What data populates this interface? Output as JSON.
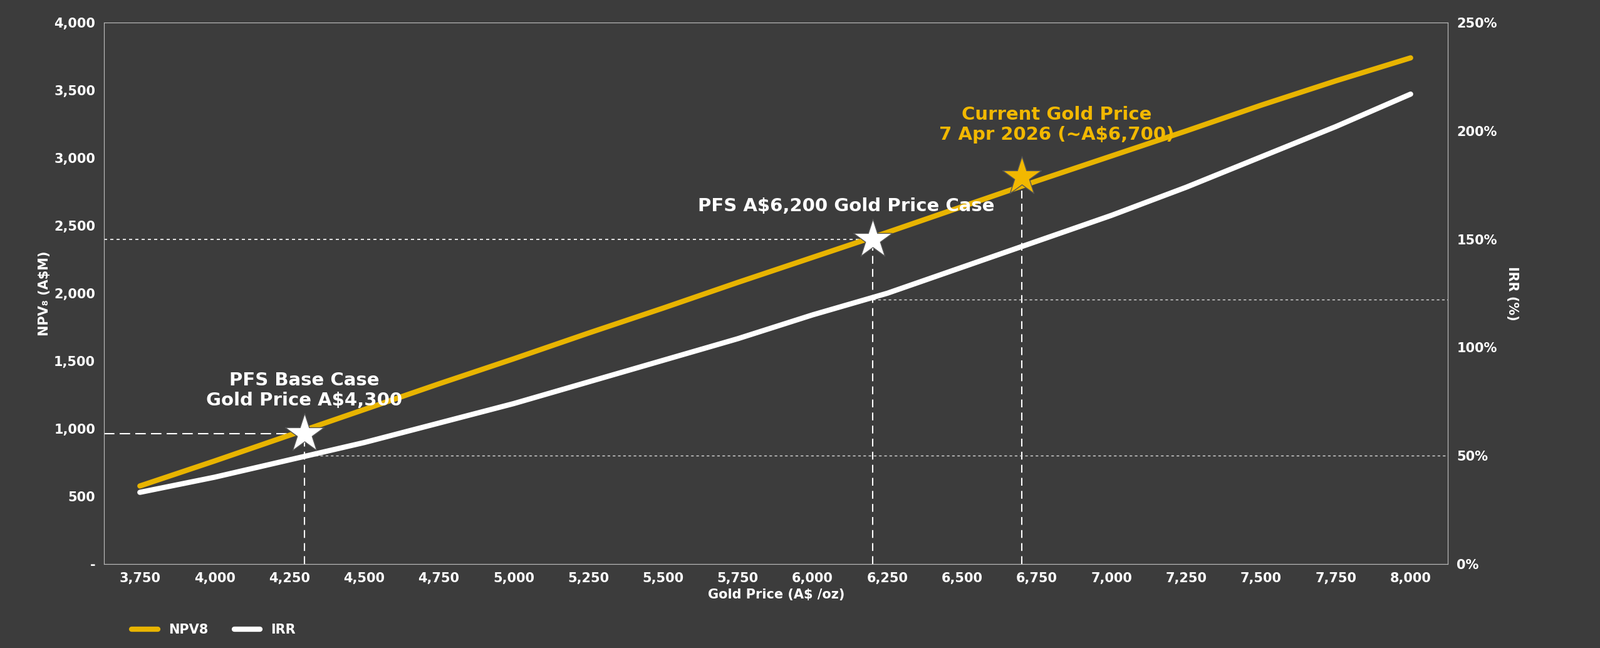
{
  "chart_data": {
    "type": "line",
    "x_label": "Gold Price (A$ /oz)",
    "y_label": "NPV₈ (A$M)",
    "y2_label": "IRR (%)",
    "x": [
      3750,
      4000,
      4250,
      4500,
      4750,
      5000,
      5250,
      5500,
      5750,
      6000,
      6250,
      6500,
      6750,
      7000,
      7250,
      7500,
      7750,
      8000
    ],
    "series": [
      {
        "name": "NPV8",
        "color": "#E8B400",
        "axis": "y",
        "values": [
          575,
          760,
          950,
          1140,
          1330,
          1515,
          1705,
          1890,
          2080,
          2265,
          2450,
          2640,
          2830,
          3015,
          3200,
          3390,
          3570,
          3740
        ]
      },
      {
        "name": "IRR",
        "color": "#FFFFFF",
        "axis": "y2",
        "values": [
          33,
          40,
          48,
          56,
          65,
          74,
          84,
          94,
          104,
          115,
          125,
          137,
          149,
          161,
          174,
          188,
          202,
          217
        ]
      }
    ],
    "xlim": [
      3630,
      8125
    ],
    "xticks": [
      {
        "value": 3750,
        "label": "3,750"
      },
      {
        "value": 4000,
        "label": "4,000"
      },
      {
        "value": 4250,
        "label": "4,250"
      },
      {
        "value": 4500,
        "label": "4,500"
      },
      {
        "value": 4750,
        "label": "4,750"
      },
      {
        "value": 5000,
        "label": "5,000"
      },
      {
        "value": 5250,
        "label": "5,250"
      },
      {
        "value": 5500,
        "label": "5,500"
      },
      {
        "value": 5750,
        "label": "5,750"
      },
      {
        "value": 6000,
        "label": "6,000"
      },
      {
        "value": 6250,
        "label": "6,250"
      },
      {
        "value": 6500,
        "label": "6,500"
      },
      {
        "value": 6750,
        "label": "6,750"
      },
      {
        "value": 7000,
        "label": "7,000"
      },
      {
        "value": 7250,
        "label": "7,250"
      },
      {
        "value": 7500,
        "label": "7,500"
      },
      {
        "value": 7750,
        "label": "7,750"
      },
      {
        "value": 8000,
        "label": "8,000"
      }
    ],
    "ylim": [
      0,
      4000
    ],
    "yticks": [
      {
        "value": 0,
        "label": "-"
      },
      500,
      {
        "value": 1000,
        "label": "1,000"
      },
      {
        "value": 1500,
        "label": "1,500"
      },
      {
        "value": 2000,
        "label": "2,000"
      },
      {
        "value": 2500,
        "label": "2,500"
      },
      {
        "value": 3000,
        "label": "3,000"
      },
      {
        "value": 3500,
        "label": "3,500"
      },
      {
        "value": 4000,
        "label": "4,000"
      }
    ],
    "y2lim": [
      0,
      250
    ],
    "y2ticks": [
      {
        "value": 0,
        "label": "0%"
      },
      {
        "value": 50,
        "label": "50%"
      },
      {
        "value": 100,
        "label": "100%"
      },
      {
        "value": 150,
        "label": "150%"
      },
      {
        "value": 200,
        "label": "200%"
      },
      {
        "value": 250,
        "label": "250%"
      }
    ],
    "grid": false,
    "legend": "lower left",
    "annotations": [
      {
        "text": "PFS Base Case\nGold Price A$4,300",
        "x": 4300,
        "y": 960,
        "irr": 50,
        "color": "#FFFFFF"
      },
      {
        "text": "PFS A$6,200 Gold Price Case",
        "x": 6200,
        "y": 2400,
        "irr": 122,
        "color": "#FFFFFF"
      },
      {
        "text": "Current Gold Price\n7 Apr 2026 (~A$6,700)",
        "x": 6700,
        "y": 2860,
        "color": "#F2B800"
      }
    ]
  }
}
